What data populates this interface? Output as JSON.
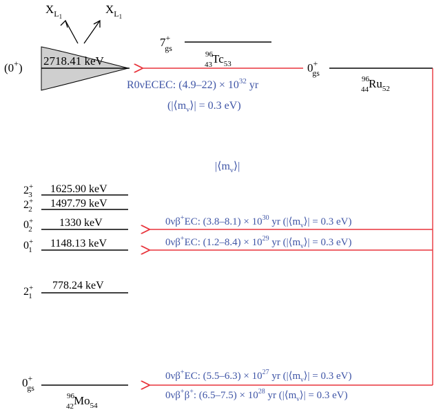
{
  "colors": {
    "arrow": "#e8323a",
    "label_blue": "#3f55a6",
    "level_line": "#000000",
    "resonance_fill": "#cfcfcf"
  },
  "xrays": {
    "left": {
      "base": "X",
      "sub": "L",
      "subsub": "1"
    },
    "right": {
      "base": "X",
      "sub": "L",
      "subsub": "1"
    }
  },
  "resonance": {
    "spin": "(0",
    "spin_sup": "+",
    "spin_close": ")",
    "energy": "2718.41 keV"
  },
  "tc": {
    "spin": "7",
    "spin_sup": "+",
    "spin_sub": "gs",
    "mass": "96",
    "z": "43",
    "symbol": "Tc",
    "n": "53"
  },
  "ru": {
    "spin": "0",
    "spin_sup": "+",
    "spin_sub": "gs",
    "mass": "96",
    "z": "44",
    "symbol": "Ru",
    "n": "52"
  },
  "ecec": {
    "line1": "R0νECEC: (4.9–22) × 10",
    "line1_exp": "32",
    "line1_unit": " yr",
    "line2_open": "(|⟨m",
    "line2_sub": "ν",
    "line2_close": "⟩| = 0.3 eV)"
  },
  "middle_label": {
    "open": "|⟨m",
    "sub": "ν",
    "close": "⟩|"
  },
  "levels": [
    {
      "spin": "2",
      "sup": "+",
      "sub": "3",
      "energy": "1625.90 keV"
    },
    {
      "spin": "2",
      "sup": "+",
      "sub": "2",
      "energy": "1497.79 keV"
    },
    {
      "spin": "0",
      "sup": "+",
      "sub": "2",
      "energy": "1330 keV"
    },
    {
      "spin": "0",
      "sup": "+",
      "sub": "1",
      "energy": "1148.13 keV"
    },
    {
      "spin": "2",
      "sup": "+",
      "sub": "1",
      "energy": "778.24 keV"
    }
  ],
  "mo": {
    "spin": "0",
    "spin_sup": "+",
    "spin_sub": "gs",
    "mass": "96",
    "z": "42",
    "symbol": "Mo",
    "n": "54"
  },
  "decays": [
    {
      "pre": "0νβ",
      "pre_sup": "+",
      "mid": "EC: (3.8–8.1) × 10",
      "exp": "30",
      "post_open": " yr (|⟨m",
      "post_sub": "ν",
      "post_close": "⟩| = 0.3 eV)"
    },
    {
      "pre": "0νβ",
      "pre_sup": "+",
      "mid": "EC: (1.2–8.4) × 10",
      "exp": "29",
      "post_open": " yr (|⟨m",
      "post_sub": "ν",
      "post_close": "⟩| = 0.3 eV)"
    },
    {
      "pre": "0νβ",
      "pre_sup": "+",
      "mid": "EC: (5.5–6.3) × 10",
      "exp": "27",
      "post_open": " yr (|⟨m",
      "post_sub": "ν",
      "post_close": "⟩| = 0.3 eV)"
    },
    {
      "pre": "0νβ",
      "pre_sup": "+",
      "mid": "β",
      "mid_sup": "+",
      "mid2": ": (6.5–7.5) × 10",
      "exp": "28",
      "post_open": " yr (|⟨m",
      "post_sub": "ν",
      "post_close": "⟩| = 0.3 eV)"
    }
  ]
}
